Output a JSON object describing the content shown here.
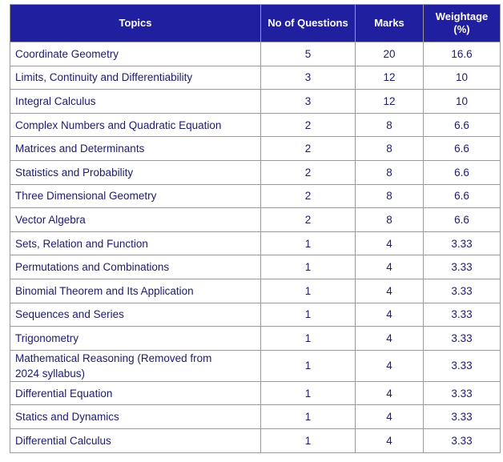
{
  "table": {
    "headers": [
      "Topics",
      "No of Questions",
      "Marks",
      "Weightage (%)"
    ],
    "rows": [
      [
        "Coordinate Geometry",
        5,
        20,
        16.6
      ],
      [
        "Limits, Continuity and Differentiability",
        3,
        12,
        10
      ],
      [
        "Integral Calculus",
        3,
        12,
        10
      ],
      [
        "Complex Numbers and Quadratic Equation",
        2,
        8,
        6.6
      ],
      [
        "Matrices and Determinants",
        2,
        8,
        6.6
      ],
      [
        "Statistics and Probability",
        2,
        8,
        6.6
      ],
      [
        "Three Dimensional Geometry",
        2,
        8,
        6.6
      ],
      [
        "Vector Algebra",
        2,
        8,
        6.6
      ],
      [
        "Sets, Relation and Function",
        1,
        4,
        3.33
      ],
      [
        "Permutations and Combinations",
        1,
        4,
        3.33
      ],
      [
        "Binomial Theorem and Its Application",
        1,
        4,
        3.33
      ],
      [
        "Sequences and Series",
        1,
        4,
        3.33
      ],
      [
        "Trigonometry",
        1,
        4,
        3.33
      ],
      [
        "Mathematical Reasoning (Removed from 2024 syllabus)",
        1,
        4,
        3.33
      ],
      [
        "Differential Equation",
        1,
        4,
        3.33
      ],
      [
        "Statics and Dynamics",
        1,
        4,
        3.33
      ],
      [
        "Differential Calculus",
        1,
        4,
        3.33
      ]
    ]
  }
}
